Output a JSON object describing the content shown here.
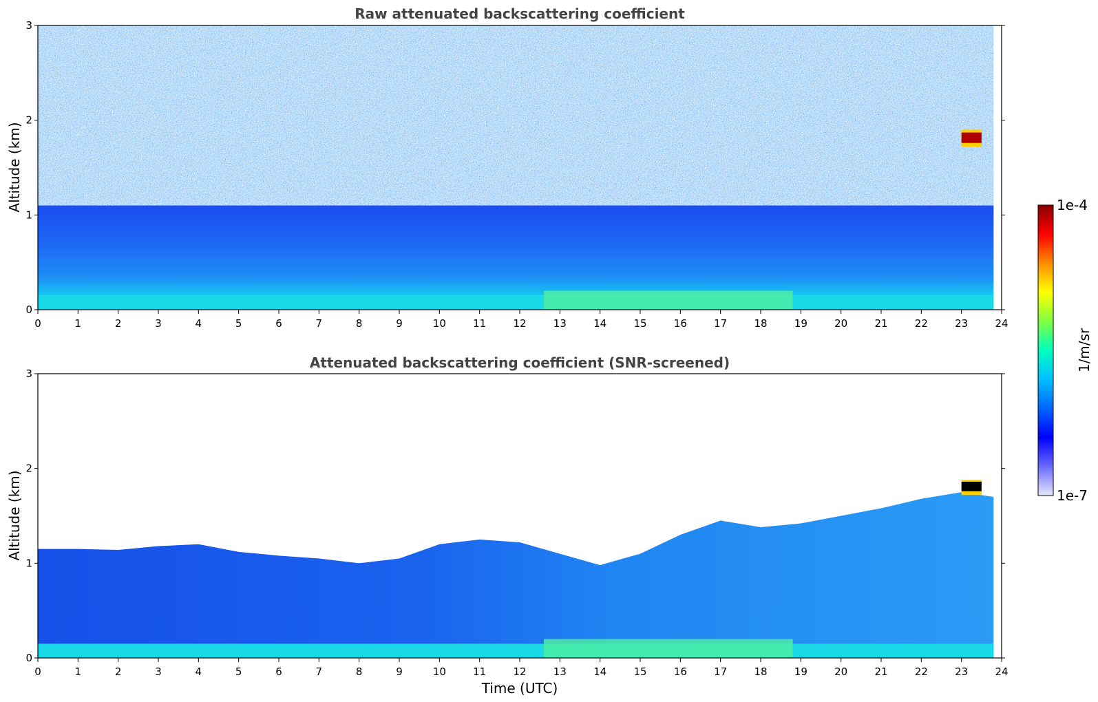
{
  "chart_data": [
    {
      "type": "heatmap",
      "title": "Raw attenuated backscattering coefficient",
      "xlabel": "",
      "ylabel": "Altitude (km)",
      "xlim": [
        0,
        24
      ],
      "ylim": [
        0,
        3
      ],
      "x_ticks": [
        "0",
        "1",
        "2",
        "3",
        "4",
        "5",
        "6",
        "7",
        "8",
        "9",
        "10",
        "11",
        "12",
        "13",
        "14",
        "15",
        "16",
        "17",
        "18",
        "19",
        "20",
        "21",
        "22",
        "23",
        "24"
      ],
      "y_ticks": [
        "0",
        "1",
        "2",
        "3"
      ],
      "screened": false,
      "features": {
        "surface_layer_top_km": 0.15,
        "aerosol_layer_top_km": 1.1,
        "enhanced_layer_hours": [
          12.6,
          18.8
        ],
        "cloud": {
          "x_start_h": 23.0,
          "x_end_h": 23.5,
          "y_bottom_km": 1.72,
          "y_top_km": 1.9
        }
      }
    },
    {
      "type": "heatmap",
      "title": "Attenuated backscattering coefficient (SNR-screened)",
      "xlabel": "Time (UTC)",
      "ylabel": "Altitude (km)",
      "xlim": [
        0,
        24
      ],
      "ylim": [
        0,
        3
      ],
      "x_ticks": [
        "0",
        "1",
        "2",
        "3",
        "4",
        "5",
        "6",
        "7",
        "8",
        "9",
        "10",
        "11",
        "12",
        "13",
        "14",
        "15",
        "16",
        "17",
        "18",
        "19",
        "20",
        "21",
        "22",
        "23",
        "24"
      ],
      "y_ticks": [
        "0",
        "1",
        "2",
        "3"
      ],
      "screened": true,
      "boundary_layer_top_km": {
        "hours": [
          0,
          1,
          2,
          3,
          4,
          5,
          6,
          7,
          8,
          9,
          10,
          11,
          12,
          13,
          14,
          15,
          16,
          17,
          18,
          19,
          20,
          21,
          22,
          23,
          23.8
        ],
        "values": [
          1.15,
          1.15,
          1.14,
          1.18,
          1.2,
          1.12,
          1.08,
          1.05,
          1.0,
          1.05,
          1.2,
          1.25,
          1.22,
          1.1,
          0.98,
          1.1,
          1.3,
          1.45,
          1.38,
          1.42,
          1.5,
          1.58,
          1.68,
          1.75,
          1.7
        ]
      },
      "cloud": {
        "x_start_h": 23.0,
        "x_end_h": 23.5,
        "y_bottom_km": 1.72,
        "y_top_km": 1.88
      }
    }
  ],
  "colorbar": {
    "min_label": "1e-7",
    "max_label": "1e-4",
    "unit_label": "1/m/sr",
    "colormap": [
      "#e6e6fa",
      "#6a6aff",
      "#0000ff",
      "#0066ff",
      "#00bfff",
      "#00ffbf",
      "#80ff40",
      "#ffff00",
      "#ff8c00",
      "#ff0000",
      "#8b0000"
    ]
  }
}
